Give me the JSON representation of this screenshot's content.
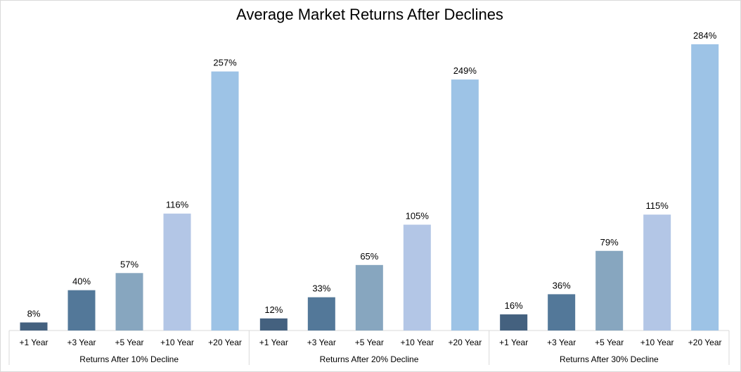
{
  "chart_data": {
    "type": "bar",
    "title": "Average Market Returns After Declines",
    "groups": [
      "Returns After 10% Decline",
      "Returns After 20% Decline",
      "Returns After 30% Decline"
    ],
    "categories": [
      "+1 Year",
      "+3 Year",
      "+5 Year",
      "+10 Year",
      "+20 Year"
    ],
    "values": [
      [
        8,
        40,
        57,
        116,
        257
      ],
      [
        12,
        33,
        65,
        105,
        249
      ],
      [
        16,
        36,
        79,
        115,
        284
      ]
    ],
    "value_labels": [
      [
        "8%",
        "40%",
        "57%",
        "116%",
        "257%"
      ],
      [
        "12%",
        "33%",
        "65%",
        "105%",
        "249%"
      ],
      [
        "16%",
        "36%",
        "79%",
        "115%",
        "284%"
      ]
    ],
    "category_colors": [
      "#44617f",
      "#537899",
      "#87a6bf",
      "#b3c6e6",
      "#9dc3e6"
    ],
    "ylim": [
      0,
      300
    ],
    "grid": false,
    "legend": "none"
  }
}
